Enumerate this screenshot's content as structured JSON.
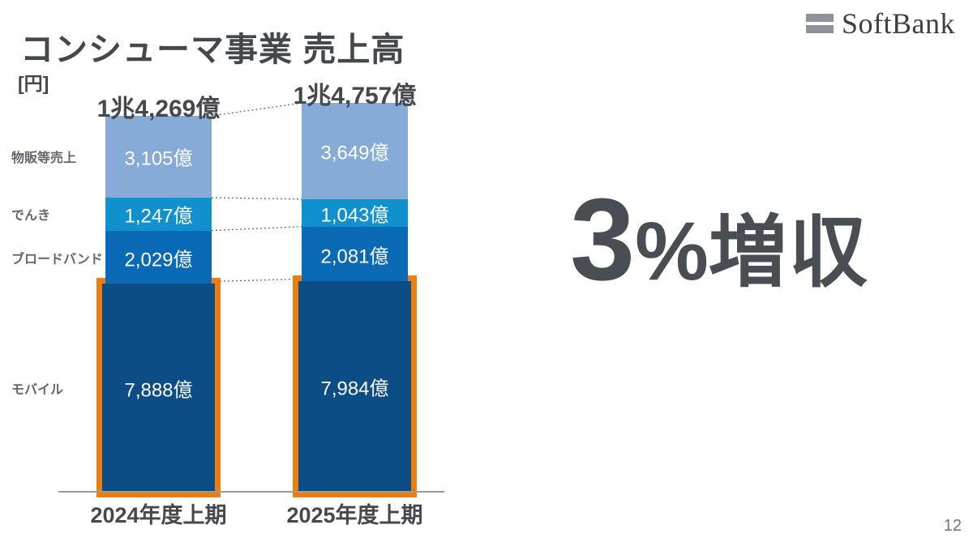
{
  "slide": {
    "title": "コンシューマ事業 売上高",
    "unit_label": "[円]",
    "headline": {
      "number": "3",
      "percent": "%",
      "text": "増収"
    },
    "page_number": "12",
    "logo": {
      "text": "SoftBank"
    }
  },
  "chart_data": {
    "type": "bar",
    "stacked": true,
    "unit": "億円",
    "categories": [
      "2024年度上期",
      "2025年度上期"
    ],
    "totals": [
      {
        "label": "1兆4,269億",
        "value": 14269
      },
      {
        "label": "1兆4,757億",
        "value": 14757
      }
    ],
    "series": [
      {
        "name": "モバイル",
        "values": [
          7888,
          7984
        ],
        "labels": [
          "7,888億",
          "7,984億"
        ],
        "color": "#0C4D85",
        "highlighted": true
      },
      {
        "name": "ブロードバンド",
        "values": [
          2029,
          2081
        ],
        "labels": [
          "2,029億",
          "2,081億"
        ],
        "color": "#0B6AB5",
        "highlighted": false
      },
      {
        "name": "でんき",
        "values": [
          1247,
          1043
        ],
        "labels": [
          "1,247億",
          "1,043億"
        ],
        "color": "#1190CE",
        "highlighted": false
      },
      {
        "name": "物販等売上",
        "values": [
          3105,
          3649
        ],
        "labels": [
          "3,105億",
          "3,649億"
        ],
        "color": "#85ABD6",
        "highlighted": false
      }
    ],
    "highlight_border_color": "#ED7D0E",
    "connector_color": "#4C6FA6",
    "legend_position": "left-of-bars",
    "grid": false
  }
}
